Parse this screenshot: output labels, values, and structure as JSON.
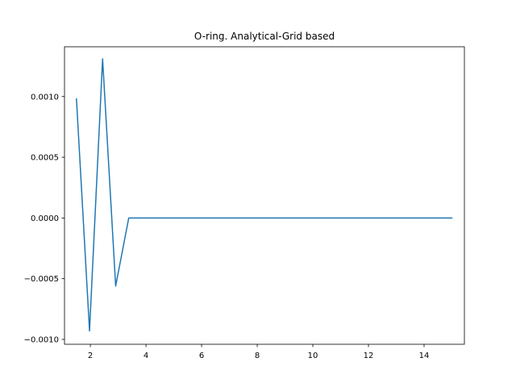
{
  "chart_data": {
    "type": "line",
    "title": "O-ring. Analytical-Grid based",
    "xlabel": "",
    "ylabel": "",
    "xlim": [
      1.07,
      15.45
    ],
    "ylim": [
      -0.00104,
      0.00141
    ],
    "xticks": [
      2,
      4,
      6,
      8,
      10,
      12,
      14
    ],
    "xtick_labels": [
      "2",
      "4",
      "6",
      "8",
      "10",
      "12",
      "14"
    ],
    "yticks": [
      -0.001,
      -0.0005,
      0.0,
      0.0005,
      0.001
    ],
    "ytick_labels": [
      "−0.0010",
      "−0.0005",
      "0.0000",
      "0.0005",
      "0.0010"
    ],
    "grid": false,
    "series": [
      {
        "color": "#1f77b4",
        "x": [
          1.5,
          1.97,
          2.44,
          2.91,
          3.38,
          15.0
        ],
        "y": [
          0.00098,
          -0.00093,
          0.00131,
          -0.00056,
          0.0,
          0.0
        ]
      }
    ]
  }
}
